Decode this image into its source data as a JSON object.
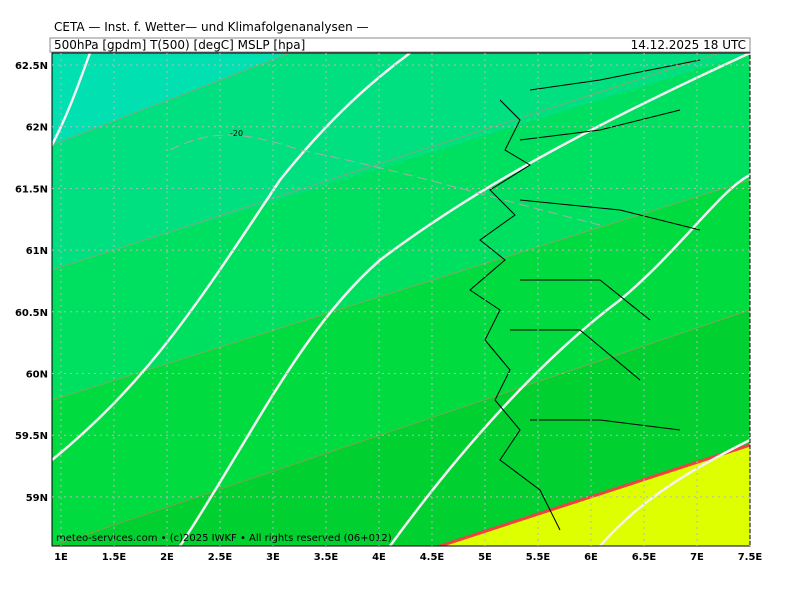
{
  "header": {
    "title": "CETA — Inst. f. Wetter— und Klimafolgenanalysen —",
    "params": "500hPa [gpdm] T(500) [degC] MSLP [hpa]",
    "valid": "14.12.2025 18 UTC"
  },
  "map": {
    "xticks": [
      "1E",
      "1.5E",
      "2E",
      "2.5E",
      "3E",
      "3.5E",
      "4E",
      "4.5E",
      "5E",
      "5.5E",
      "6E",
      "6.5E",
      "7E",
      "7.5E"
    ],
    "yticks": [
      "62.5N",
      "62N",
      "61.5N",
      "61N",
      "60.5N",
      "60N",
      "59.5N",
      "59N"
    ],
    "contour_label": "-20",
    "footer": "meteo-services.com • (c)2025 IWKF • All rights reserved (06+012)"
  }
}
